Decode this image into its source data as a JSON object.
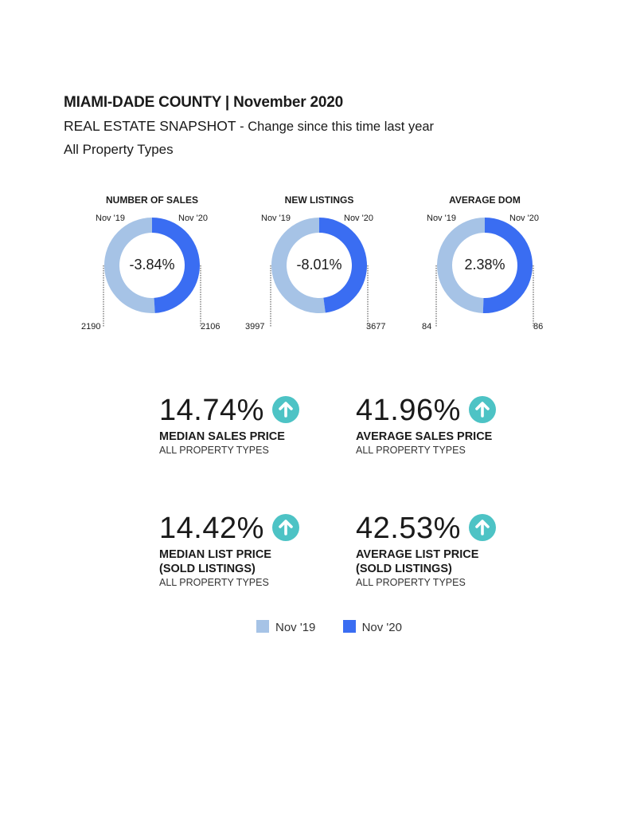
{
  "header": {
    "title": "MIAMI-DADE COUNTY | November 2020",
    "subtitle_main": "REAL ESTATE SNAPSHOT",
    "subtitle_change": " - Change since this time last year",
    "property_types": "All Property Types"
  },
  "colors": {
    "prev": "#a6c3e6",
    "curr": "#3a6df2",
    "accent": "#4dc3c5"
  },
  "chart_data": [
    {
      "type": "pie",
      "title": "NUMBER OF SALES",
      "categories": [
        "Nov '19",
        "Nov '20"
      ],
      "values": [
        2190,
        2106
      ],
      "change": "-3.84%",
      "value_labels": [
        "2190",
        "2106"
      ],
      "series_labels": [
        "Nov '19",
        "Nov '20"
      ]
    },
    {
      "type": "pie",
      "title": "NEW LISTINGS",
      "categories": [
        "Nov '19",
        "Nov '20"
      ],
      "values": [
        3997,
        3677
      ],
      "change": "-8.01%",
      "value_labels": [
        "3997",
        "3677"
      ],
      "series_labels": [
        "Nov '19",
        "Nov '20"
      ]
    },
    {
      "type": "pie",
      "title": "AVERAGE DOM",
      "categories": [
        "Nov '19",
        "Nov '20"
      ],
      "values": [
        84,
        86
      ],
      "change": "2.38%",
      "value_labels": [
        "84",
        "86"
      ],
      "series_labels": [
        "Nov '19",
        "Nov '20"
      ]
    }
  ],
  "metrics": [
    {
      "value": "14.74%",
      "name": "MEDIAN SALES PRICE",
      "name2": "",
      "sub": "ALL PROPERTY TYPES",
      "icon": "arrow-up-icon"
    },
    {
      "value": "41.96%",
      "name": "AVERAGE SALES PRICE",
      "name2": "",
      "sub": "ALL PROPERTY TYPES",
      "icon": "arrow-up-icon"
    },
    {
      "value": "14.42%",
      "name": "MEDIAN LIST PRICE",
      "name2": "(SOLD LISTINGS)",
      "sub": "ALL PROPERTY TYPES",
      "icon": "arrow-up-icon"
    },
    {
      "value": "42.53%",
      "name": "AVERAGE LIST PRICE",
      "name2": "(SOLD LISTINGS)",
      "sub": "ALL PROPERTY TYPES",
      "icon": "arrow-up-icon"
    }
  ],
  "legend": {
    "prev": "Nov '19",
    "curr": "Nov '20"
  }
}
